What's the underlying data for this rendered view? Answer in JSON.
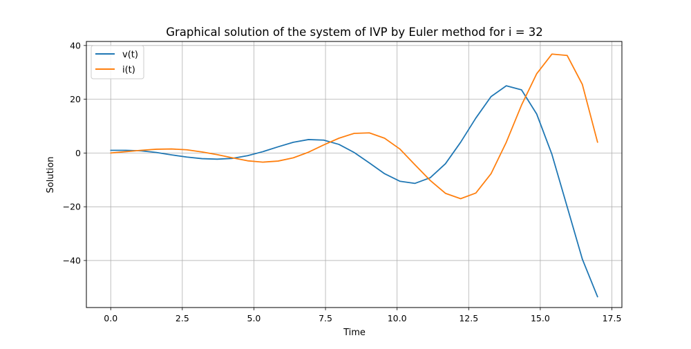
{
  "chart_data": {
    "type": "line",
    "title": "Graphical solution of the system of IVP by Euler method for i = 32",
    "xlabel": "Time",
    "ylabel": "Solution",
    "xlim": [
      -0.85,
      17.85
    ],
    "ylim": [
      -57.5,
      41.5
    ],
    "grid": true,
    "legend_position": "top-left",
    "x_ticks": [
      0.0,
      2.5,
      5.0,
      7.5,
      10.0,
      12.5,
      15.0,
      17.5
    ],
    "x_tick_labels": [
      "0.0",
      "2.5",
      "5.0",
      "7.5",
      "10.0",
      "12.5",
      "15.0",
      "17.5"
    ],
    "y_ticks": [
      -40,
      -20,
      0,
      20,
      40
    ],
    "y_tick_labels": [
      "−40",
      "−20",
      "0",
      "20",
      "40"
    ],
    "x": [
      0.0,
      0.531,
      1.063,
      1.594,
      2.125,
      2.656,
      3.188,
      3.719,
      4.25,
      4.781,
      5.313,
      5.844,
      6.375,
      6.906,
      7.438,
      7.969,
      8.5,
      9.031,
      9.563,
      10.094,
      10.625,
      11.156,
      11.688,
      12.219,
      12.75,
      13.281,
      13.813,
      14.344,
      14.875,
      15.406,
      15.938,
      16.469,
      17.0
    ],
    "series": [
      {
        "name": "v(t)",
        "color": "#1f77b4",
        "values": [
          1.0,
          1.0,
          0.8,
          0.2,
          -0.7,
          -1.5,
          -2.1,
          -2.3,
          -2.0,
          -1.0,
          0.5,
          2.3,
          4.0,
          5.0,
          4.8,
          3.2,
          0.2,
          -3.7,
          -7.7,
          -10.5,
          -11.3,
          -9.2,
          -4.0,
          4.0,
          13.0,
          21.0,
          25.0,
          23.5,
          14.5,
          -0.5,
          -20.0,
          -39.5,
          -53.5
        ]
      },
      {
        "name": "i(t)",
        "color": "#ff7f0e",
        "values": [
          0.0,
          0.5,
          1.0,
          1.4,
          1.5,
          1.2,
          0.4,
          -0.6,
          -1.8,
          -2.9,
          -3.4,
          -3.0,
          -1.8,
          0.3,
          3.0,
          5.5,
          7.3,
          7.5,
          5.5,
          1.5,
          -4.4,
          -10.2,
          -15.0,
          -17.0,
          -14.9,
          -7.7,
          4.0,
          17.8,
          29.5,
          36.8,
          36.3,
          25.5,
          4.0
        ]
      }
    ]
  }
}
